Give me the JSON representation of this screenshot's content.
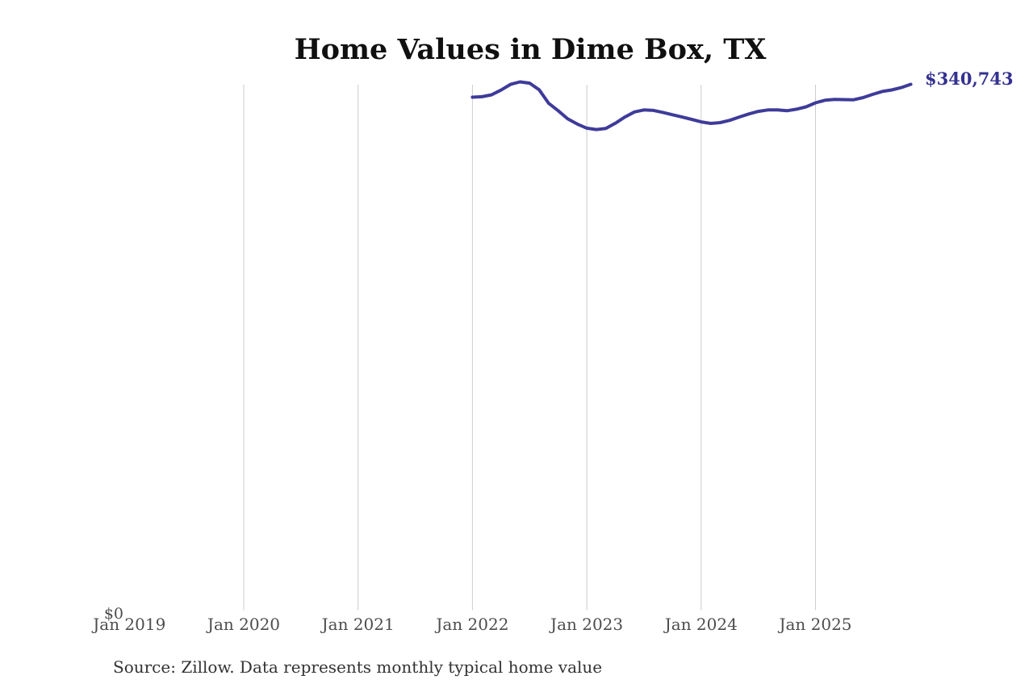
{
  "page": {
    "title": "Home Values in Dime Box, TX",
    "source_note": "Source: Zillow. Data represents monthly typical home value"
  },
  "axes": {
    "zero_label": "$0",
    "x_ticks": [
      "Jan 2019",
      "Jan 2020",
      "Jan 2021",
      "Jan 2022",
      "Jan 2023",
      "Jan 2024",
      "Jan 2025"
    ]
  },
  "annotations": {
    "latest_value_label": "$340,743"
  },
  "colors": {
    "line": "#3f3b9a",
    "latest_label": "#343190",
    "gridline": "#cccccc",
    "axis_text": "#4d4d4d",
    "title_text": "#101010",
    "source_text": "#333333",
    "background": "#ffffff"
  },
  "chart_data": {
    "type": "line",
    "title": "Home Values in Dime Box, TX",
    "series_name": "Monthly typical home value",
    "unit": "USD",
    "xlabel": "",
    "ylabel": "",
    "ylim": [
      0,
      355000
    ],
    "x_tick_labels": [
      "Jan 2019",
      "Jan 2020",
      "Jan 2021",
      "Jan 2022",
      "Jan 2023",
      "Jan 2024",
      "Jan 2025"
    ],
    "y_tick_labels": [
      "$0"
    ],
    "gridlines": "vertical-yearly",
    "legend": "none",
    "latest_value": 340743,
    "latest_value_label": "$340,743",
    "x": [
      "Jan 2022",
      "Feb 2022",
      "Mar 2022",
      "Apr 2022",
      "May 2022",
      "Jun 2022",
      "Jul 2022",
      "Aug 2022",
      "Sep 2022",
      "Oct 2022",
      "Nov 2022",
      "Dec 2022",
      "Jan 2023",
      "Feb 2023",
      "Mar 2023",
      "Apr 2023",
      "May 2023",
      "Jun 2023",
      "Jul 2023",
      "Aug 2023",
      "Sep 2023",
      "Oct 2023",
      "Nov 2023",
      "Dec 2023",
      "Jan 2024",
      "Feb 2024",
      "Mar 2024",
      "Apr 2024",
      "May 2024",
      "Jun 2024",
      "Jul 2024",
      "Aug 2024",
      "Sep 2024",
      "Oct 2024",
      "Nov 2024",
      "Dec 2024",
      "Jan 2025",
      "Feb 2025",
      "Mar 2025",
      "Apr 2025",
      "May 2025",
      "Jun 2025",
      "Jul 2025",
      "Aug 2025",
      "Sep 2025",
      "Oct 2025",
      "Nov 2025"
    ],
    "values": [
      332400,
      332700,
      333900,
      337000,
      340700,
      342300,
      341500,
      337200,
      328400,
      323600,
      318300,
      315000,
      312300,
      311400,
      312100,
      315500,
      319500,
      322800,
      324100,
      323800,
      322500,
      321000,
      319500,
      318000,
      316400,
      315400,
      315900,
      317400,
      319500,
      321500,
      323200,
      324100,
      324100,
      323600,
      324600,
      326100,
      328700,
      330400,
      330900,
      330800,
      330700,
      332100,
      334200,
      336100,
      337100,
      338600,
      340743
    ]
  }
}
